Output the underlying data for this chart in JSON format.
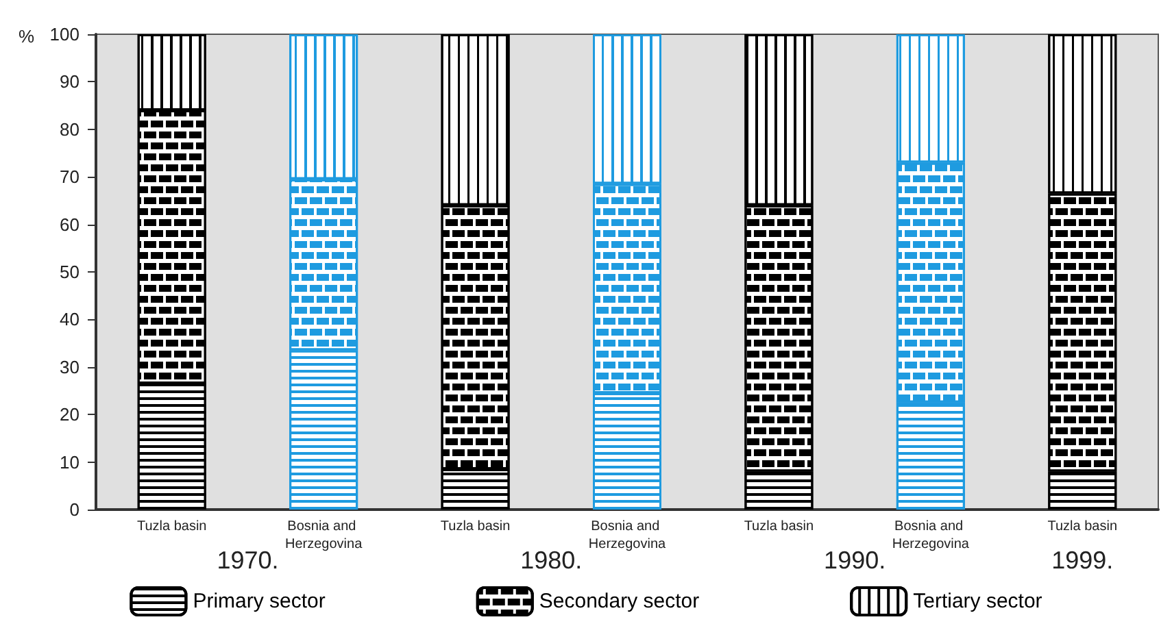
{
  "chart_data": {
    "type": "bar",
    "stacked": true,
    "ylabel": "%",
    "categories": [
      "Tuzla basin",
      "Bosnia and Herzegovina",
      "Tuzla basin",
      "Bosnia and Herzegovina",
      "Tuzla basin",
      "Bosnia and Herzegovina",
      "Tuzla basin"
    ],
    "series": [
      {
        "name": "Primary sector",
        "color": "#000000",
        "colors": [
          "#000000",
          "#1e9be0",
          "#000000",
          "#1e9be0",
          "#000000",
          "#1e9be0",
          "#000000"
        ],
        "values": [
          26.5,
          33.5,
          8.5,
          24.5,
          8,
          22.5,
          8
        ]
      },
      {
        "name": "Secondary sector",
        "color": "#000000",
        "colors": [
          "#000000",
          "#1e9be0",
          "#000000",
          "#1e9be0",
          "#000000",
          "#1e9be0",
          "#000000"
        ],
        "values": [
          57.5,
          36,
          55.5,
          44,
          56,
          50.5,
          58.5
        ]
      },
      {
        "name": "Tertiary sector",
        "color": "#000000",
        "colors": [
          "#000000",
          "#1e9be0",
          "#000000",
          "#1e9be0",
          "#000000",
          "#1e9be0",
          "#000000"
        ],
        "values": [
          16,
          30.5,
          36,
          31.5,
          36,
          27,
          33.5
        ]
      }
    ],
    "annotations": [
      "1970.",
      "1980.",
      "1990.",
      "1999."
    ],
    "ylim": [
      0,
      100
    ],
    "yticks": [
      0,
      10,
      20,
      30,
      40,
      50,
      60,
      70,
      80,
      90,
      100
    ],
    "grid": false,
    "legend": "bottom"
  }
}
